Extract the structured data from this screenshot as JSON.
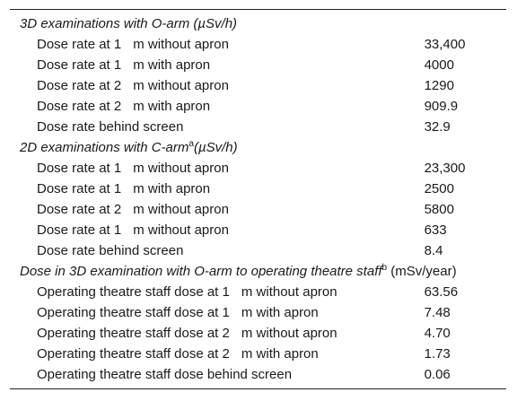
{
  "table": {
    "sections": [
      {
        "title": "3D examinations with O-arm (µSv/h)",
        "rows": [
          {
            "label_a": "Dose rate at 1",
            "label_b": "m without apron",
            "value": "33,400"
          },
          {
            "label_a": "Dose rate at 1",
            "label_b": "m with apron",
            "value": "4000"
          },
          {
            "label_a": "Dose rate at 2",
            "label_b": "m without apron",
            "value": "1290"
          },
          {
            "label_a": "Dose rate at 2",
            "label_b": "m with apron",
            "value": "909.9"
          },
          {
            "label_a": "Dose rate behind screen",
            "label_b": "",
            "value": "32.9"
          }
        ]
      },
      {
        "title": "2D examinations with C-arm",
        "title_sup": "a",
        "title_suffix": "(µSv/h)",
        "rows": [
          {
            "label_a": "Dose rate at 1",
            "label_b": "m without apron",
            "value": "23,300"
          },
          {
            "label_a": "Dose rate at 1",
            "label_b": "m with apron",
            "value": "2500"
          },
          {
            "label_a": "Dose rate at 2",
            "label_b": "m without apron",
            "value": "5800"
          },
          {
            "label_a": "Dose rate at 1",
            "label_b": "m without apron",
            "value": "633"
          },
          {
            "label_a": "Dose rate behind screen",
            "label_b": "",
            "value": "8.4"
          }
        ]
      },
      {
        "title": "Dose in 3D examination with O-arm to operating theatre staff",
        "title_sup": "b",
        "title_unit": "(mSv/year)",
        "rows": [
          {
            "label_a": "Operating theatre staff dose at 1",
            "label_b": "m without apron",
            "value": "63.56"
          },
          {
            "label_a": "Operating theatre staff dose at 1",
            "label_b": "m with apron",
            "value": "7.48"
          },
          {
            "label_a": "Operating theatre staff dose at 2",
            "label_b": "m without apron",
            "value": "4.70"
          },
          {
            "label_a": "Operating theatre staff dose at 2",
            "label_b": "m with apron",
            "value": "1.73"
          },
          {
            "label_a": "Operating theatre staff dose behind screen",
            "label_b": "",
            "value": "0.06"
          }
        ]
      }
    ]
  }
}
